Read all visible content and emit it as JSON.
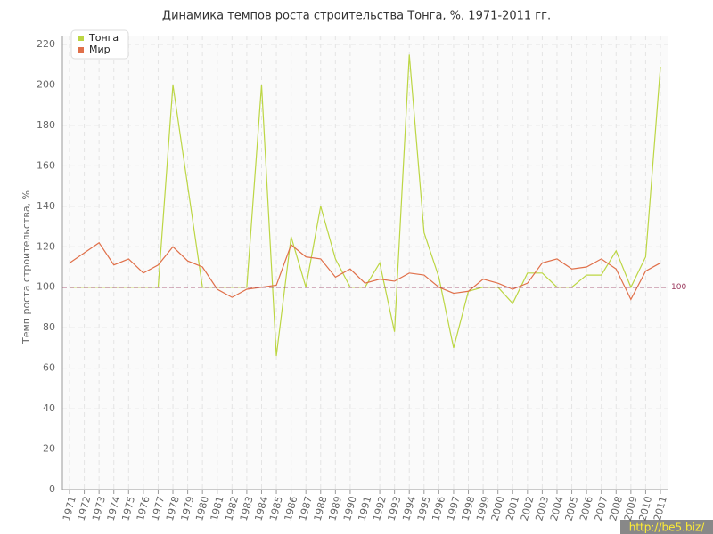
{
  "chart_data": {
    "type": "line",
    "title": "Динамика темпов роста строительства Тонга, %, 1971-2011 гг.",
    "y_label": "Темп роста строительства, %",
    "categories": [
      "1971",
      "1972",
      "1973",
      "1974",
      "1975",
      "1976",
      "1977",
      "1978",
      "1979",
      "1980",
      "1981",
      "1982",
      "1983",
      "1984",
      "1985",
      "1986",
      "1987",
      "1988",
      "1989",
      "1990",
      "1991",
      "1992",
      "1993",
      "1994",
      "1995",
      "1996",
      "1997",
      "1998",
      "1999",
      "2000",
      "2001",
      "2002",
      "2003",
      "2004",
      "2005",
      "2006",
      "2007",
      "2008",
      "2009",
      "2010",
      "2011"
    ],
    "series": [
      {
        "name": "Тонга",
        "color": "#bcd643",
        "values": [
          100,
          100,
          100,
          100,
          100,
          100,
          100,
          200,
          150,
          100,
          100,
          100,
          100,
          200,
          66,
          125,
          100,
          140,
          114,
          100,
          100,
          112,
          78,
          215,
          127,
          105,
          70,
          98,
          100,
          100,
          92,
          107,
          107,
          100,
          100,
          106,
          106,
          118,
          100,
          115,
          209
        ]
      },
      {
        "name": "Мир",
        "color": "#e0704a",
        "values": [
          112,
          117,
          122,
          111,
          114,
          107,
          111,
          120,
          113,
          110,
          99,
          95,
          99,
          100,
          101,
          121,
          115,
          114,
          105,
          109,
          102,
          104,
          103,
          107,
          106,
          100,
          97,
          98,
          104,
          102,
          99,
          102,
          112,
          114,
          109,
          110,
          114,
          109,
          94,
          108,
          112
        ]
      }
    ],
    "reference_line": 100,
    "reference_color": "#9b3a5e",
    "ylim": [
      0,
      220
    ],
    "yticks": [
      0,
      20,
      40,
      60,
      80,
      100,
      120,
      140,
      160,
      180,
      200,
      220
    ],
    "grid": true,
    "legend": "top-left",
    "watermark": "http://be5.biz/"
  }
}
